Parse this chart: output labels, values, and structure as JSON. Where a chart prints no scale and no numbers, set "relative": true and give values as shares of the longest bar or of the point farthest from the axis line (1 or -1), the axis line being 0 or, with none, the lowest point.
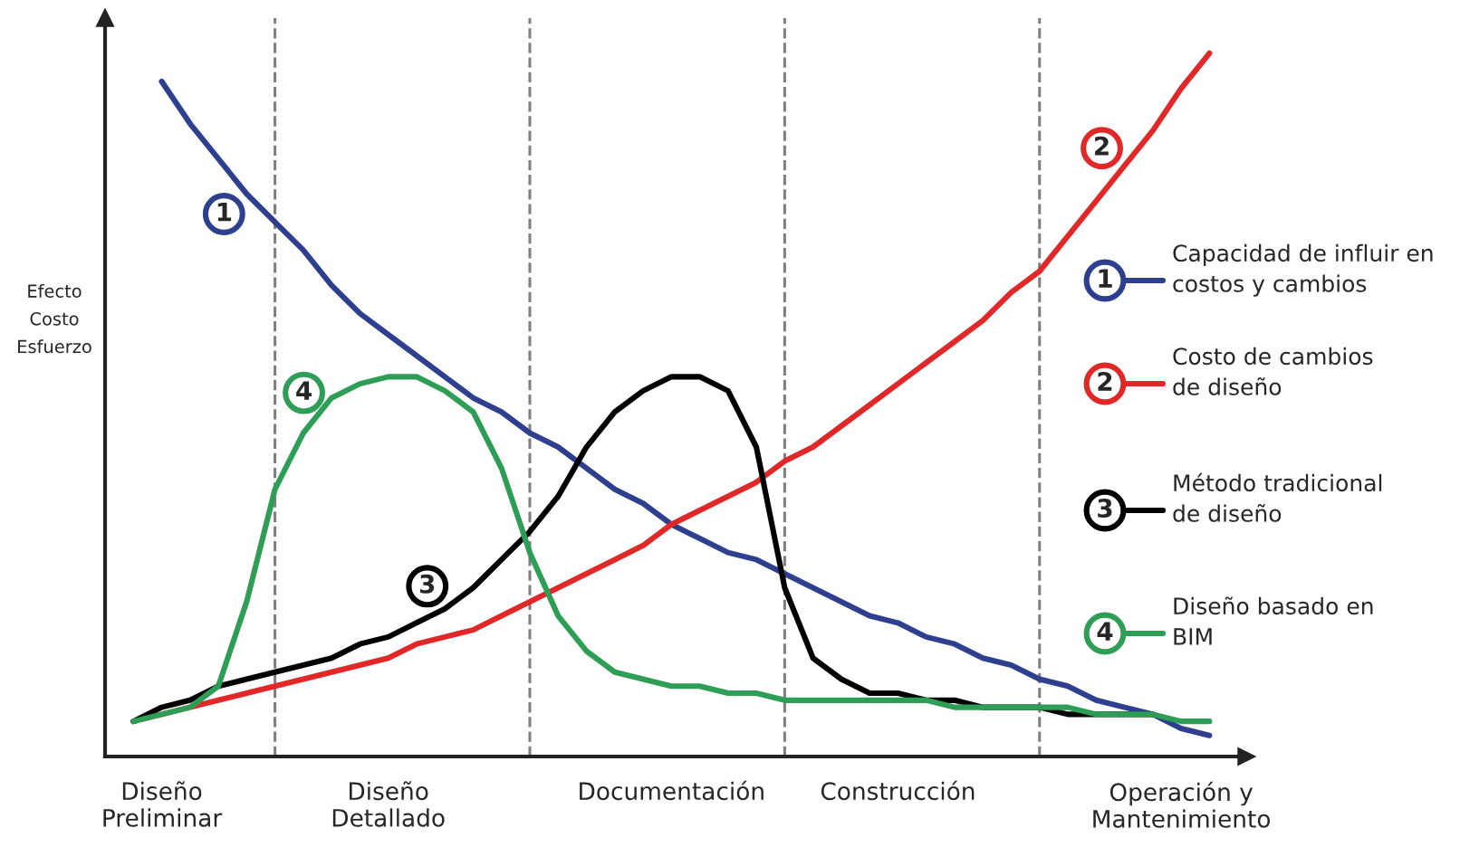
{
  "chart_data": {
    "type": "line",
    "relative": true,
    "ylabel": "Efecto\nCosto\nEsfuerzo",
    "categories": [
      null,
      "Diseño\nPreliminar",
      null,
      null,
      null,
      null,
      null,
      null,
      null,
      "Diseño\nDetallado",
      null,
      null,
      null,
      null,
      null,
      null,
      null,
      null,
      null,
      "Documentación",
      null,
      null,
      null,
      null,
      null,
      null,
      null,
      "Construcción",
      null,
      null,
      null,
      null,
      null,
      null,
      null,
      null,
      null,
      "Operación y\nMantenimiento",
      null
    ],
    "grid": "x",
    "legend": "right",
    "marker": "none",
    "line_style": "solid",
    "series": [
      {
        "name": "Capacidad de influir en\ncostos y cambios",
        "color": "#2e3f8f",
        "values": [
          null,
          0.96,
          0.9,
          0.85,
          0.8,
          0.76,
          0.72,
          0.67,
          0.63,
          0.6,
          0.57,
          0.54,
          0.51,
          0.49,
          0.46,
          0.44,
          0.41,
          0.38,
          0.36,
          0.33,
          0.31,
          0.29,
          0.28,
          0.26,
          0.24,
          0.22,
          0.2,
          0.19,
          0.17,
          0.16,
          0.14,
          0.13,
          0.11,
          0.1,
          0.08,
          0.07,
          0.06,
          0.04,
          0.03
        ]
      },
      {
        "name": "Costo de cambios\nde diseño",
        "color": "#e02828",
        "values": [
          0.05,
          0.06,
          0.07,
          0.08,
          0.09,
          0.1,
          0.11,
          0.12,
          0.13,
          0.14,
          0.16,
          0.17,
          0.18,
          0.2,
          0.22,
          0.24,
          0.26,
          0.28,
          0.3,
          0.33,
          0.35,
          0.37,
          0.39,
          0.42,
          0.44,
          0.47,
          0.5,
          0.53,
          0.56,
          0.59,
          0.62,
          0.66,
          0.69,
          0.74,
          0.79,
          0.84,
          0.89,
          0.95,
          1.0
        ]
      },
      {
        "name": "Método tradicional\nde diseño",
        "color": "#000000",
        "values": [
          0.05,
          0.07,
          0.08,
          0.1,
          0.11,
          0.12,
          0.13,
          0.14,
          0.16,
          0.17,
          0.19,
          0.21,
          0.24,
          0.28,
          0.32,
          0.37,
          0.44,
          0.49,
          0.52,
          0.54,
          0.54,
          0.52,
          0.44,
          0.24,
          0.14,
          0.11,
          0.09,
          0.09,
          0.08,
          0.08,
          0.07,
          0.07,
          0.07,
          0.06,
          0.06,
          0.06,
          0.06,
          null,
          null
        ]
      },
      {
        "name": "Diseño basado en\nBIM",
        "color": "#2e9e57",
        "values": [
          0.05,
          0.06,
          0.07,
          0.1,
          0.22,
          0.38,
          0.46,
          0.51,
          0.53,
          0.54,
          0.54,
          0.52,
          0.49,
          0.41,
          0.29,
          0.2,
          0.15,
          0.12,
          0.11,
          0.1,
          0.1,
          0.09,
          0.09,
          0.08,
          0.08,
          0.08,
          0.08,
          0.08,
          0.08,
          0.07,
          0.07,
          0.07,
          0.07,
          0.07,
          0.06,
          0.06,
          0.06,
          0.05,
          0.05
        ]
      }
    ],
    "annotations": [
      "1",
      "2",
      "3",
      "4"
    ]
  }
}
